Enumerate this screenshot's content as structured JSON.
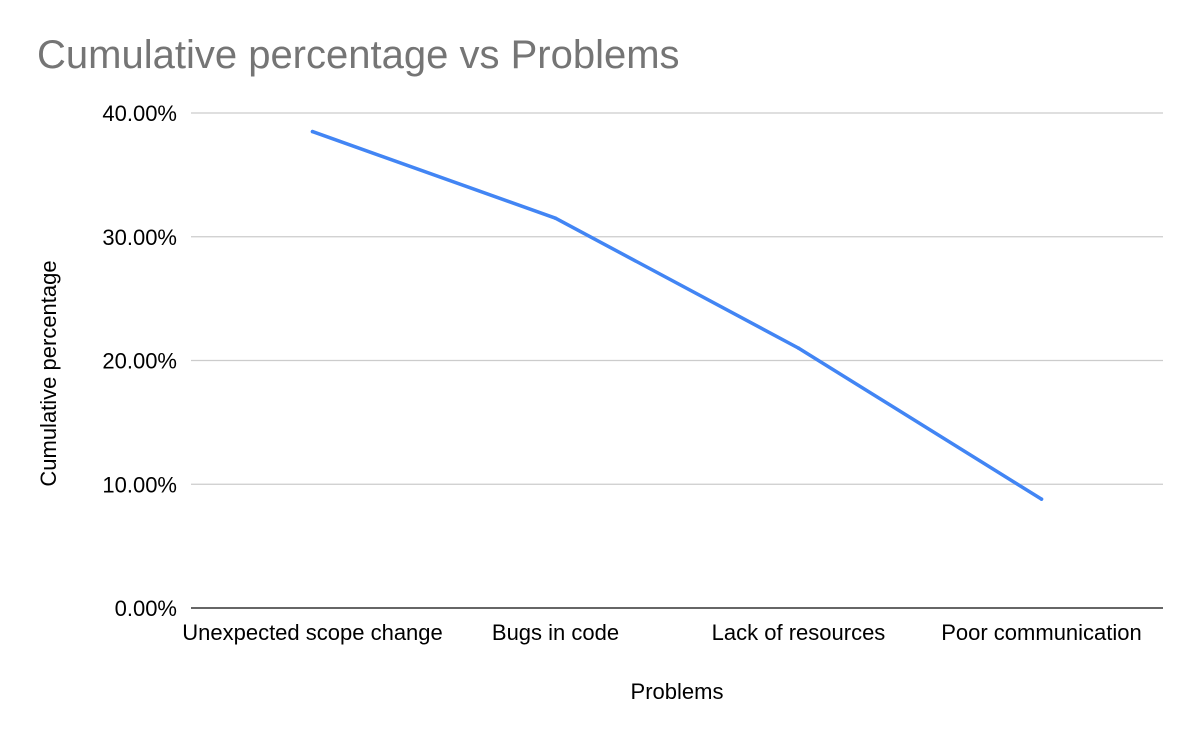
{
  "chart_data": {
    "type": "line",
    "title": "Cumulative percentage vs Problems",
    "xlabel": "Problems",
    "ylabel": "Cumulative percentage",
    "categories": [
      "Unexpected scope change",
      "Bugs in code",
      "Lack of resources",
      "Poor communication"
    ],
    "series": [
      {
        "values": [
          38.5,
          31.5,
          21.0,
          8.8
        ],
        "color": "#4285f4"
      }
    ],
    "ylim": [
      0,
      40
    ],
    "yticks": [
      0,
      10,
      20,
      30,
      40
    ],
    "ytick_labels": [
      "0.00%",
      "10.00%",
      "20.00%",
      "30.00%",
      "40.00%"
    ],
    "grid": true,
    "legend": "none"
  }
}
